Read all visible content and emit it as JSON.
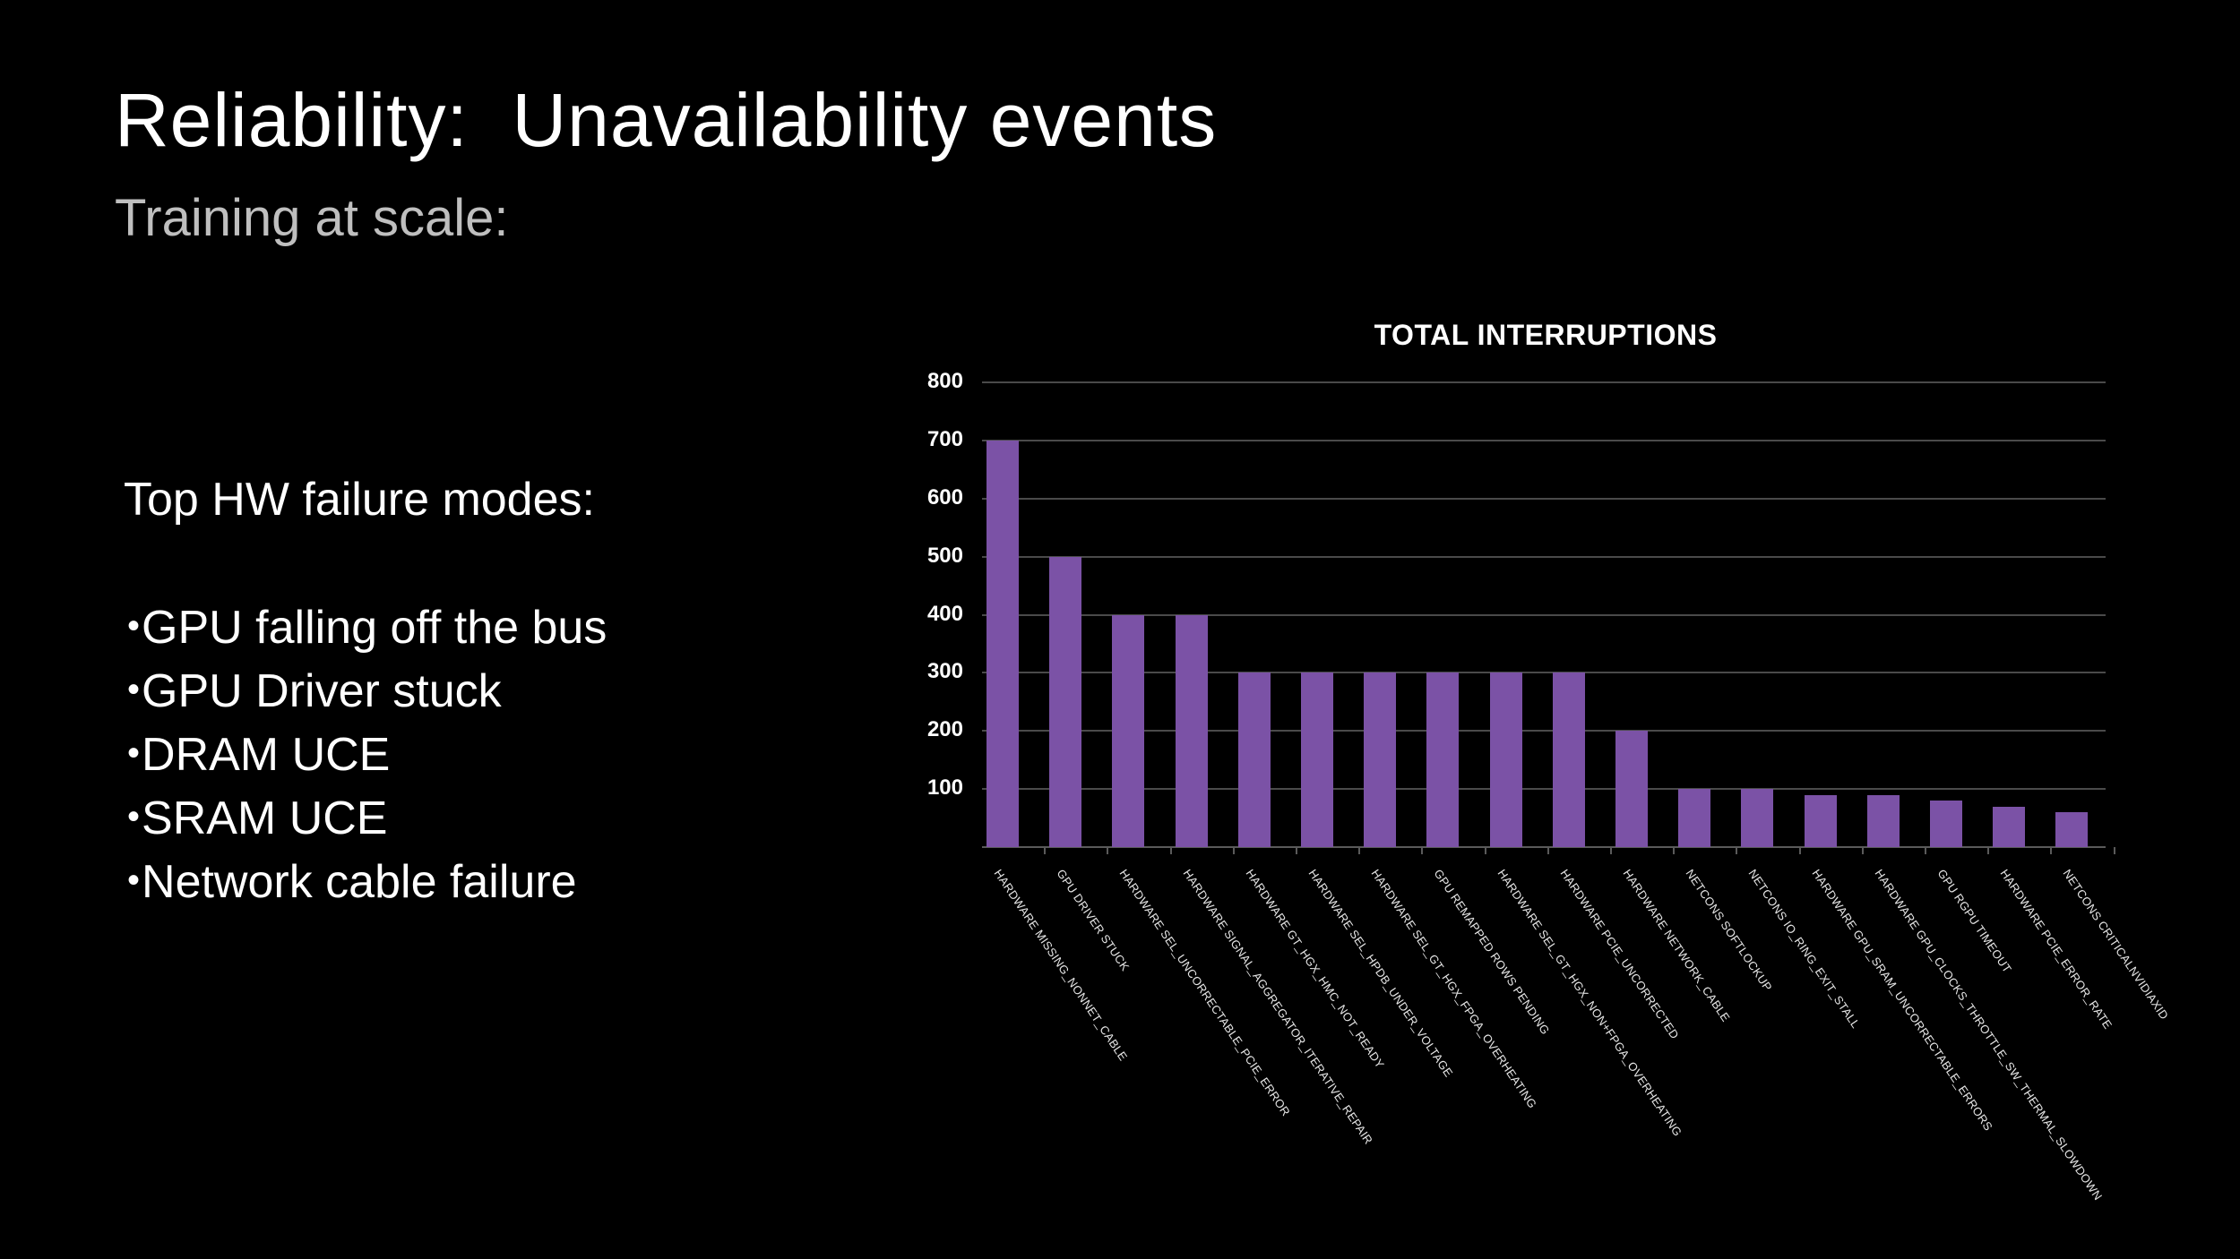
{
  "slide": {
    "title": "Reliability:  Unavailability events",
    "subtitle": "Training at scale:",
    "failure_heading": "Top HW failure modes:",
    "failure_modes": [
      "GPU falling off the bus",
      "GPU Driver stuck",
      "DRAM UCE",
      "SRAM UCE",
      "Network cable failure"
    ],
    "bullet_glyph": "•"
  },
  "colors": {
    "background": "#000000",
    "bar": "#7b52a6",
    "gridline": "#4a4a4a",
    "text": "#ffffff",
    "subtitle": "#bfbfbf"
  },
  "chart_data": {
    "type": "bar",
    "title": "TOTAL INTERRUPTIONS",
    "xlabel": "",
    "ylabel": "",
    "ylim": [
      0,
      800
    ],
    "yticks": [
      100,
      200,
      300,
      400,
      500,
      600,
      700,
      800
    ],
    "grid": true,
    "legend": null,
    "categories": [
      "HARDWARE MISSING_NONNET_CABLE",
      "GPU DRIVER STUCK",
      "HARDWARE SEL_UNCORRECTABLE_PCIE_ERROR",
      "HARDWARE SIGNAL_AGGREGATOR_ITERATIVE_REPAIR",
      "HARDWARE GT_HGX_HMC_NOT_READY",
      "HARDWARE SEL_HPDB_UNDER_VOLTAGE",
      "HARDWARE SEL_GT_HGX_FPGA_OVERHEATING",
      "GPU REMAPPED ROWS PENDING",
      "HARDWARE SEL_GT_HGX_NON+FPGA_OVERHEATING",
      "HARDWARE PCIE_UNCORRECTED",
      "HARDWARE NETWORK_CABLE",
      "NETCONS SOFTLOCKUP",
      "NETCONS IO_RING_EXIT_STALL",
      "HARDWARE GPU_SRAM_UNCORRECTABLE_ERRORS",
      "HARDWARE GPU_CLOCKS_THROTTLE_SW_THERMAL_SLOWDOWN",
      "GPU RGPU TIMEOUT",
      "HARDWARE PCIE_ERROR_RATE",
      "NETCONS CRITICALNVIDIAXID"
    ],
    "values": [
      700,
      500,
      400,
      400,
      300,
      300,
      300,
      300,
      300,
      300,
      200,
      100,
      100,
      90,
      90,
      80,
      70,
      60
    ]
  }
}
